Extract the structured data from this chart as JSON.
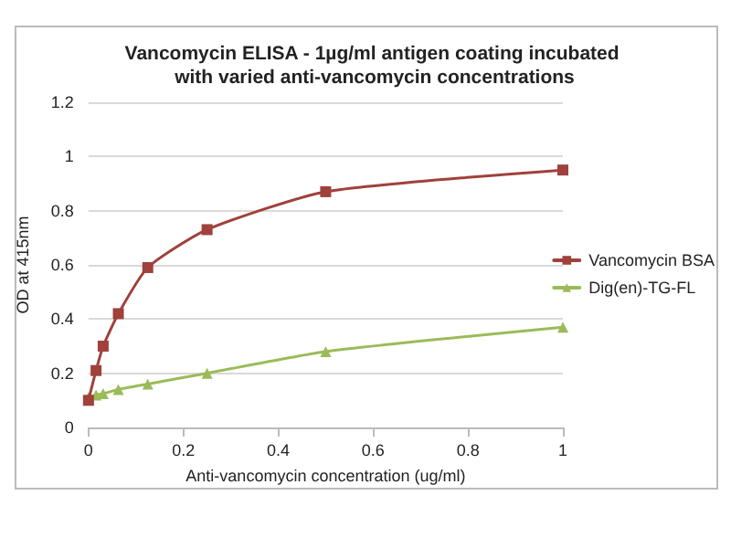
{
  "chart_data": {
    "type": "line",
    "title": "Vancomycin ELISA - 1µg/ml antigen coating incubated with varied anti-vancomycin concentrations",
    "xlabel": "Anti-vancomycin concentration (ug/ml)",
    "ylabel": "OD at 415nm",
    "x": [
      0,
      0.016,
      0.031,
      0.063,
      0.125,
      0.25,
      0.5,
      1
    ],
    "series": [
      {
        "name": "Vancomycin BSA",
        "color": "#a0413c",
        "marker": "square",
        "values": [
          0.1,
          0.21,
          0.3,
          0.42,
          0.59,
          0.73,
          0.87,
          0.95
        ]
      },
      {
        "name": "Dig(en)-TG-FL",
        "color": "#9bbb59",
        "marker": "triangle",
        "values": [
          0.11,
          0.12,
          0.125,
          0.14,
          0.16,
          0.2,
          0.28,
          0.37
        ]
      }
    ],
    "xlim": [
      0,
      1
    ],
    "xticks": [
      0,
      0.2,
      0.4,
      0.6,
      0.8,
      1
    ],
    "ylim": [
      0,
      1.2
    ],
    "yticks": [
      0,
      0.2,
      0.4,
      0.6,
      0.8,
      1,
      1.2
    ],
    "grid": "y",
    "legend": "right"
  }
}
